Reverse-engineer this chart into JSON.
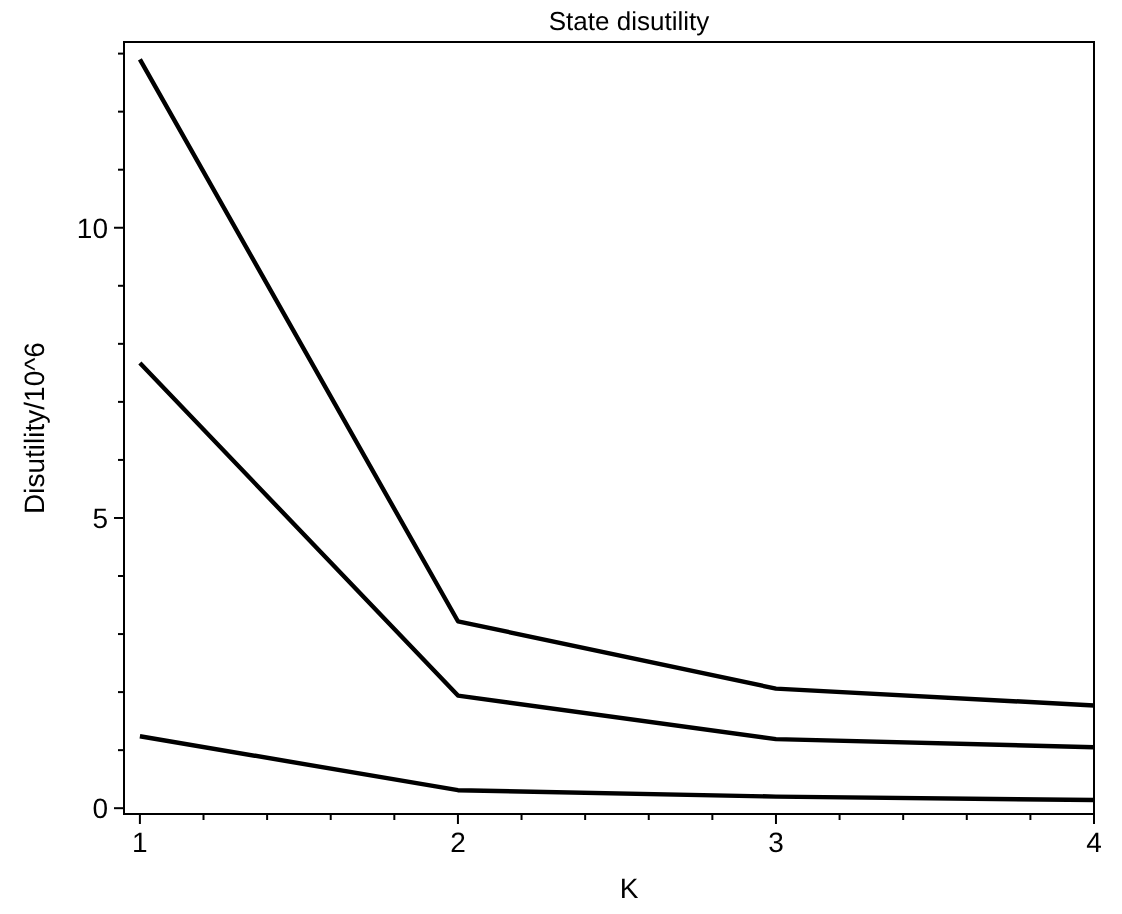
{
  "chart_data": {
    "type": "line",
    "title": "State disutility",
    "xlabel": "K",
    "ylabel": "Disutility/10^6",
    "x": [
      1,
      2,
      3,
      4
    ],
    "series": [
      {
        "color": "#000000",
        "values": [
          12.9,
          3.22,
          2.06,
          1.77
        ]
      },
      {
        "color": "#000000",
        "values": [
          7.67,
          1.94,
          1.19,
          1.05
        ]
      },
      {
        "color": "#000000",
        "values": [
          1.24,
          0.31,
          0.2,
          0.14
        ]
      }
    ],
    "xlim": [
      0.95,
      4
    ],
    "ylim": [
      -0.1,
      13.2
    ],
    "xticks": [
      1,
      {
        "value": 1.2,
        "label": null
      },
      {
        "value": 1.4,
        "label": null
      },
      {
        "value": 1.6,
        "label": null
      },
      {
        "value": 1.8,
        "label": null
      },
      2,
      {
        "value": 2.2,
        "label": null
      },
      {
        "value": 2.4,
        "label": null
      },
      {
        "value": 2.6,
        "label": null
      },
      {
        "value": 2.8,
        "label": null
      },
      3,
      {
        "value": 3.2,
        "label": null
      },
      {
        "value": 3.4,
        "label": null
      },
      {
        "value": 3.6,
        "label": null
      },
      {
        "value": 3.8,
        "label": null
      },
      4
    ],
    "yticks": [
      0,
      {
        "value": 1,
        "label": null
      },
      {
        "value": 2,
        "label": null
      },
      {
        "value": 3,
        "label": null
      },
      {
        "value": 4,
        "label": null
      },
      5,
      {
        "value": 6,
        "label": null
      },
      {
        "value": 7,
        "label": null
      },
      {
        "value": 8,
        "label": null
      },
      {
        "value": 9,
        "label": null
      },
      10,
      {
        "value": 11,
        "label": null
      },
      {
        "value": 12,
        "label": null
      },
      {
        "value": 13,
        "label": null
      }
    ],
    "grid": false,
    "marker": "none",
    "line_style": "solid"
  }
}
